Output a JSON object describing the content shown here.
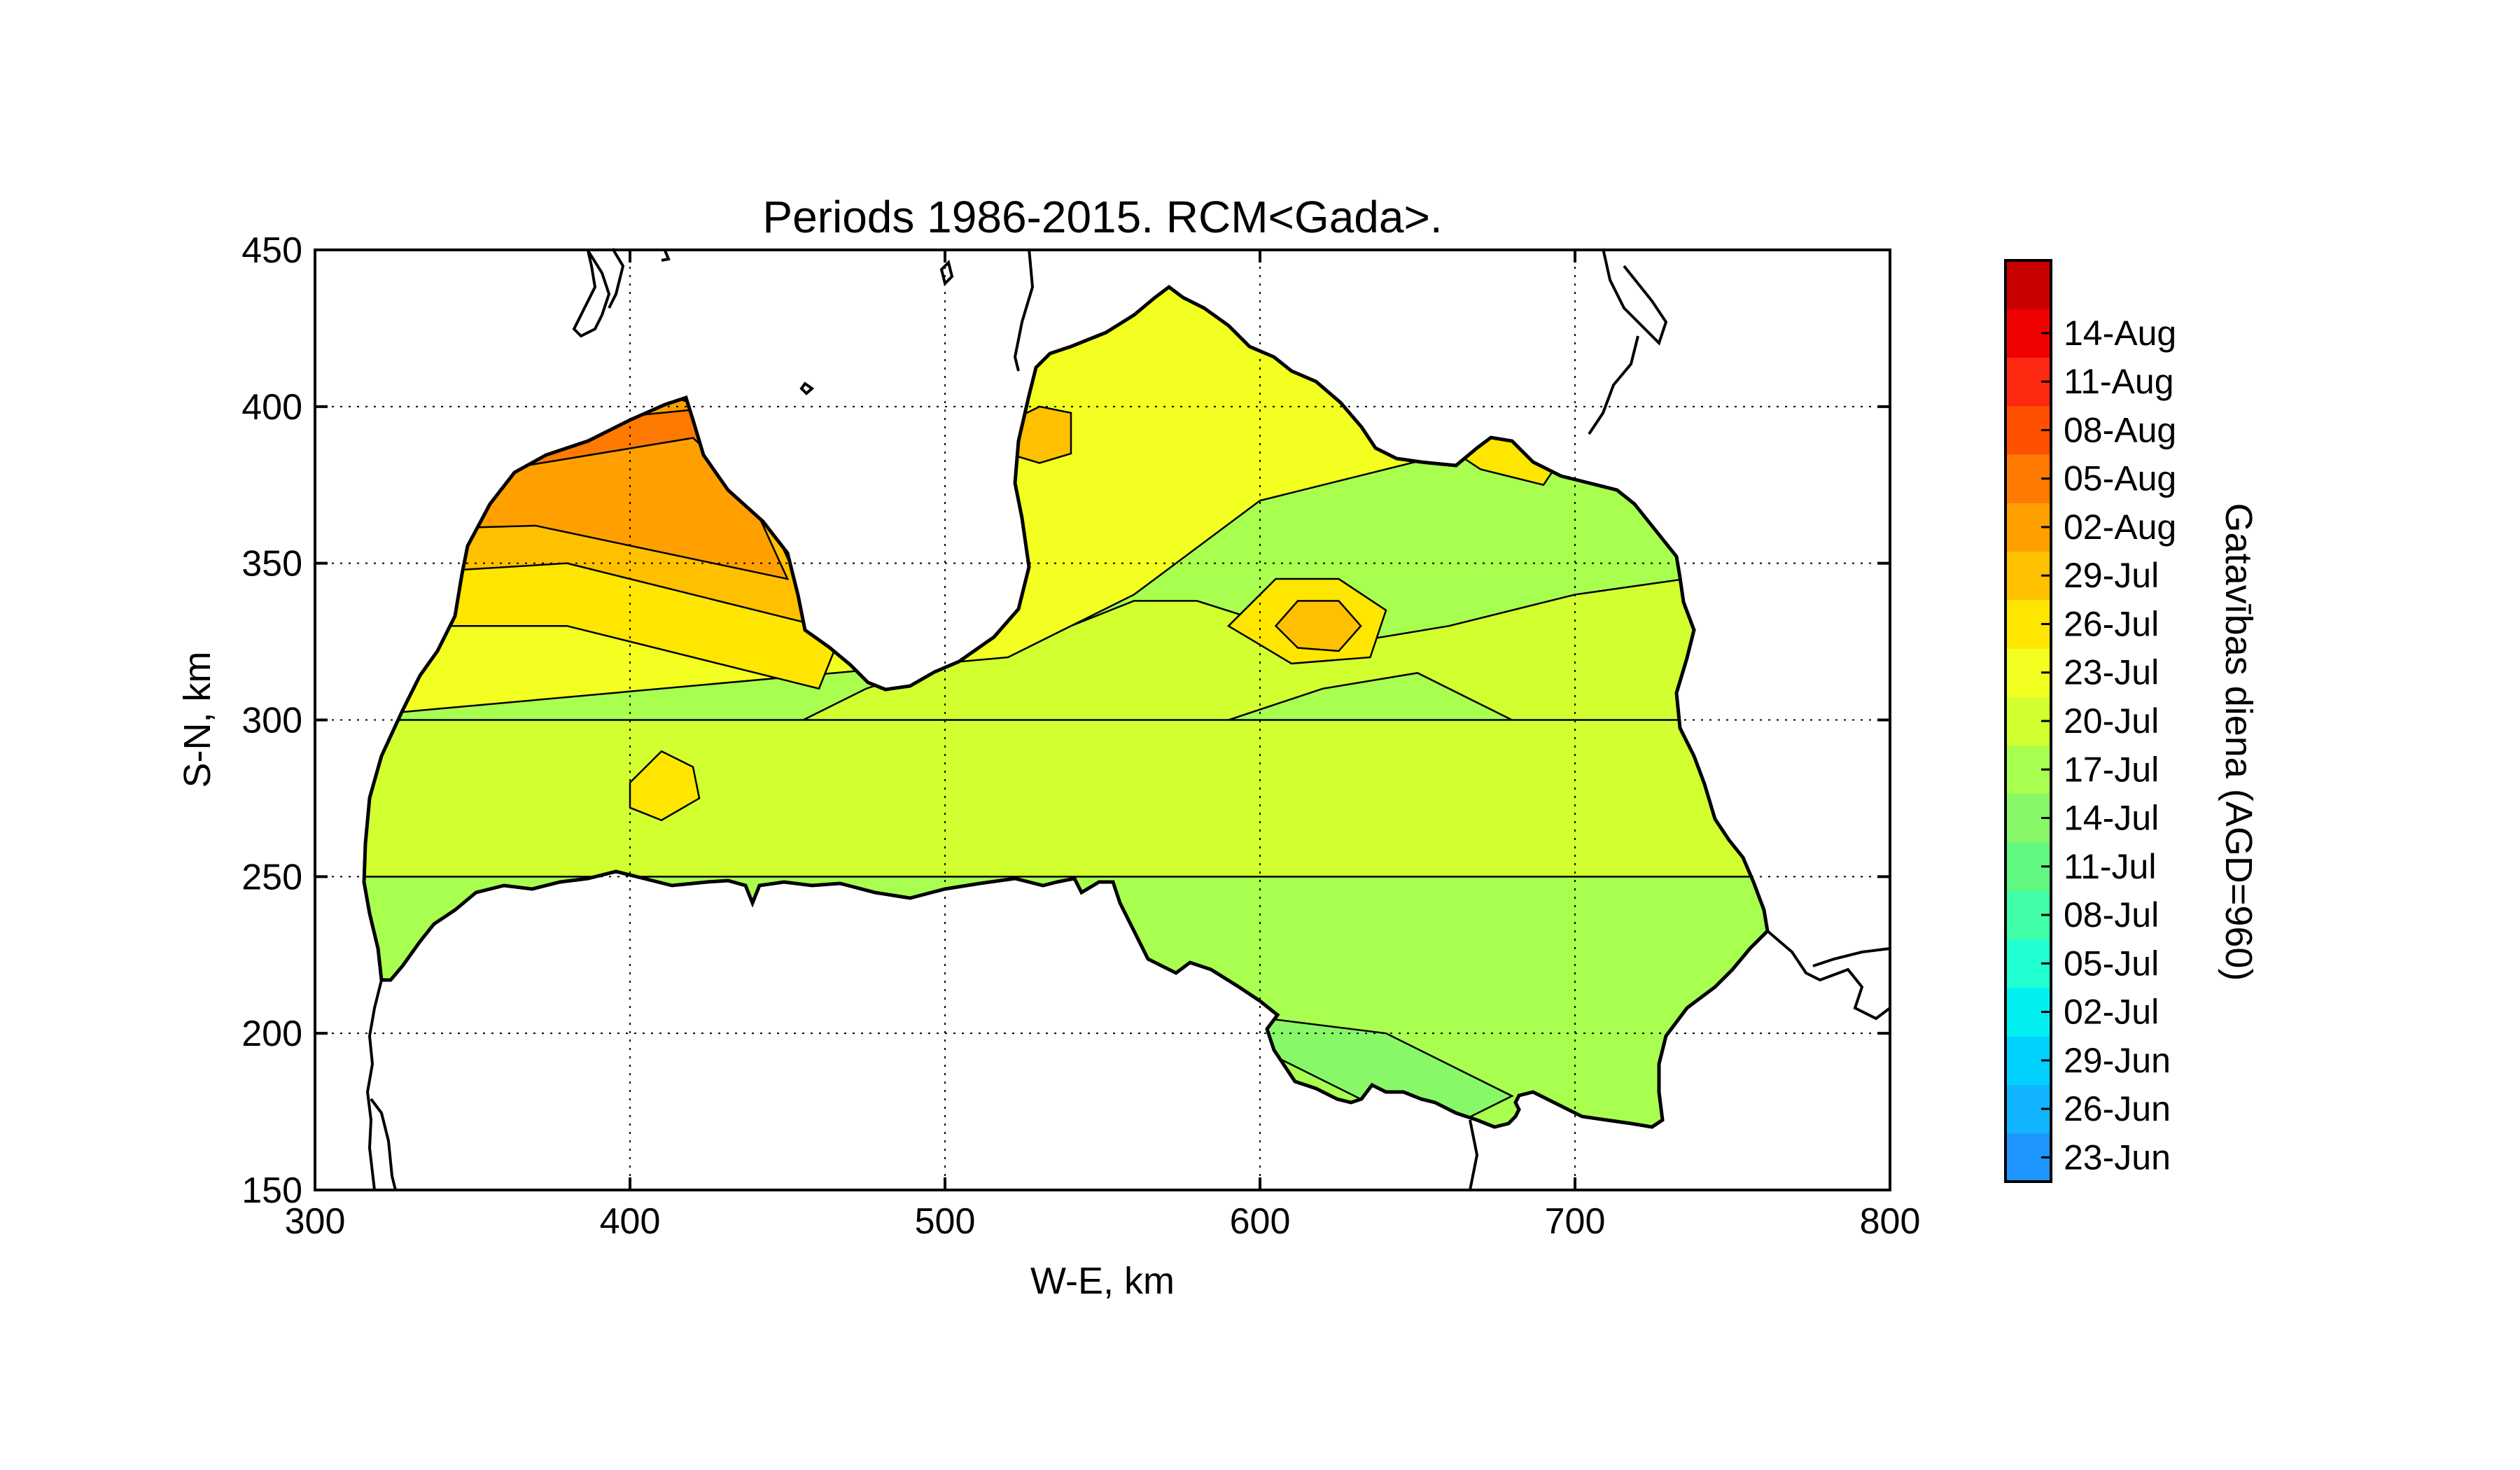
{
  "chart_data": {
    "type": "heatmap",
    "title": "Periods 1986-2015. RCM<Gada>.",
    "xlabel": "W-E, km",
    "ylabel": "S-N, km",
    "xlim": [
      300,
      800
    ],
    "ylim": [
      150,
      450
    ],
    "xticks": [
      "300",
      "400",
      "500",
      "600",
      "700",
      "800"
    ],
    "yticks": [
      "150",
      "200",
      "250",
      "300",
      "350",
      "400",
      "450"
    ],
    "grid": true,
    "colorbar": {
      "label": "Gatavības diena (AGD=960)",
      "tick_labels": [
        "23-Jun",
        "26-Jun",
        "29-Jun",
        "02-Jul",
        "05-Jul",
        "08-Jul",
        "11-Jul",
        "14-Jul",
        "17-Jul",
        "20-Jul",
        "23-Jul",
        "26-Jul",
        "29-Jul",
        "02-Aug",
        "05-Aug",
        "08-Aug",
        "11-Aug",
        "14-Aug"
      ],
      "colors": [
        "#1e96ff",
        "#10b4ff",
        "#00d2ff",
        "#00f0f0",
        "#20ffd0",
        "#40ffa8",
        "#60f880",
        "#88f868",
        "#a8ff50",
        "#d2ff30",
        "#f2ff20",
        "#ffe600",
        "#ffc000",
        "#ffa000",
        "#ff7a00",
        "#ff5000",
        "#ff2810",
        "#f00000",
        "#c80000"
      ]
    },
    "regions": [
      {
        "band": "14-Jul",
        "points": [
          [
            300,
            150
          ],
          [
            800,
            150
          ],
          [
            800,
            450
          ],
          [
            300,
            450
          ]
        ]
      },
      {
        "band": "17-Jul",
        "points": [
          [
            455,
            300
          ],
          [
            475,
            310
          ],
          [
            505,
            320
          ],
          [
            540,
            330
          ],
          [
            560,
            338
          ],
          [
            580,
            338
          ],
          [
            605,
            330
          ],
          [
            630,
            325
          ],
          [
            660,
            330
          ],
          [
            700,
            340
          ],
          [
            735,
            345
          ],
          [
            760,
            335
          ],
          [
            760,
            300
          ],
          [
            730,
            290
          ],
          [
            700,
            290
          ],
          [
            680,
            300
          ],
          [
            650,
            315
          ],
          [
            620,
            310
          ],
          [
            590,
            300
          ],
          [
            560,
            295
          ],
          [
            530,
            292
          ],
          [
            500,
            292
          ],
          [
            470,
            298
          ]
        ]
      },
      {
        "band": "17-Jul",
        "points": [
          [
            300,
            250
          ],
          [
            760,
            250
          ],
          [
            760,
            300
          ],
          [
            300,
            300
          ]
        ]
      },
      {
        "band": "20-Jul",
        "points": [
          [
            300,
            300
          ],
          [
            520,
            320
          ],
          [
            560,
            340
          ],
          [
            600,
            370
          ],
          [
            660,
            385
          ],
          [
            760,
            395
          ],
          [
            800,
            450
          ],
          [
            300,
            450
          ]
        ]
      },
      {
        "band": "23-Jul",
        "points": [
          [
            300,
            330
          ],
          [
            380,
            330
          ],
          [
            460,
            310
          ],
          [
            470,
            335
          ],
          [
            420,
            380
          ],
          [
            300,
            410
          ]
        ]
      },
      {
        "band": "26-Jul",
        "points": [
          [
            300,
            345
          ],
          [
            380,
            350
          ],
          [
            460,
            330
          ],
          [
            430,
            395
          ],
          [
            300,
            420
          ]
        ]
      },
      {
        "band": "29-Jul",
        "points": [
          [
            300,
            360
          ],
          [
            370,
            362
          ],
          [
            450,
            345
          ],
          [
            425,
            400
          ],
          [
            300,
            430
          ]
        ]
      },
      {
        "band": "02-Aug",
        "points": [
          [
            360,
            380
          ],
          [
            420,
            390
          ],
          [
            450,
            362
          ],
          [
            430,
            400
          ],
          [
            380,
            395
          ]
        ]
      },
      {
        "band": "11-Jul",
        "points": [
          [
            600,
            205
          ],
          [
            640,
            200
          ],
          [
            680,
            180
          ],
          [
            660,
            170
          ],
          [
            640,
            175
          ],
          [
            600,
            195
          ]
        ]
      },
      {
        "band": "23-Jul",
        "points": [
          [
            640,
            400
          ],
          [
            670,
            380
          ],
          [
            690,
            375
          ],
          [
            700,
            390
          ],
          [
            690,
            405
          ],
          [
            660,
            410
          ]
        ]
      },
      {
        "band": "23-Jul",
        "points": [
          [
            590,
            330
          ],
          [
            605,
            345
          ],
          [
            625,
            345
          ],
          [
            640,
            335
          ],
          [
            635,
            320
          ],
          [
            610,
            318
          ]
        ]
      },
      {
        "band": "26-Jul",
        "points": [
          [
            605,
            330
          ],
          [
            612,
            338
          ],
          [
            625,
            338
          ],
          [
            632,
            330
          ],
          [
            625,
            322
          ],
          [
            612,
            323
          ]
        ]
      },
      {
        "band": "23-Jul",
        "points": [
          [
            400,
            280
          ],
          [
            410,
            290
          ],
          [
            420,
            285
          ],
          [
            422,
            275
          ],
          [
            410,
            268
          ],
          [
            400,
            272
          ]
        ]
      },
      {
        "band": "26-Jul",
        "points": [
          [
            520,
            395
          ],
          [
            530,
            400
          ],
          [
            540,
            398
          ],
          [
            540,
            385
          ],
          [
            530,
            382
          ],
          [
            520,
            385
          ]
        ]
      }
    ]
  }
}
